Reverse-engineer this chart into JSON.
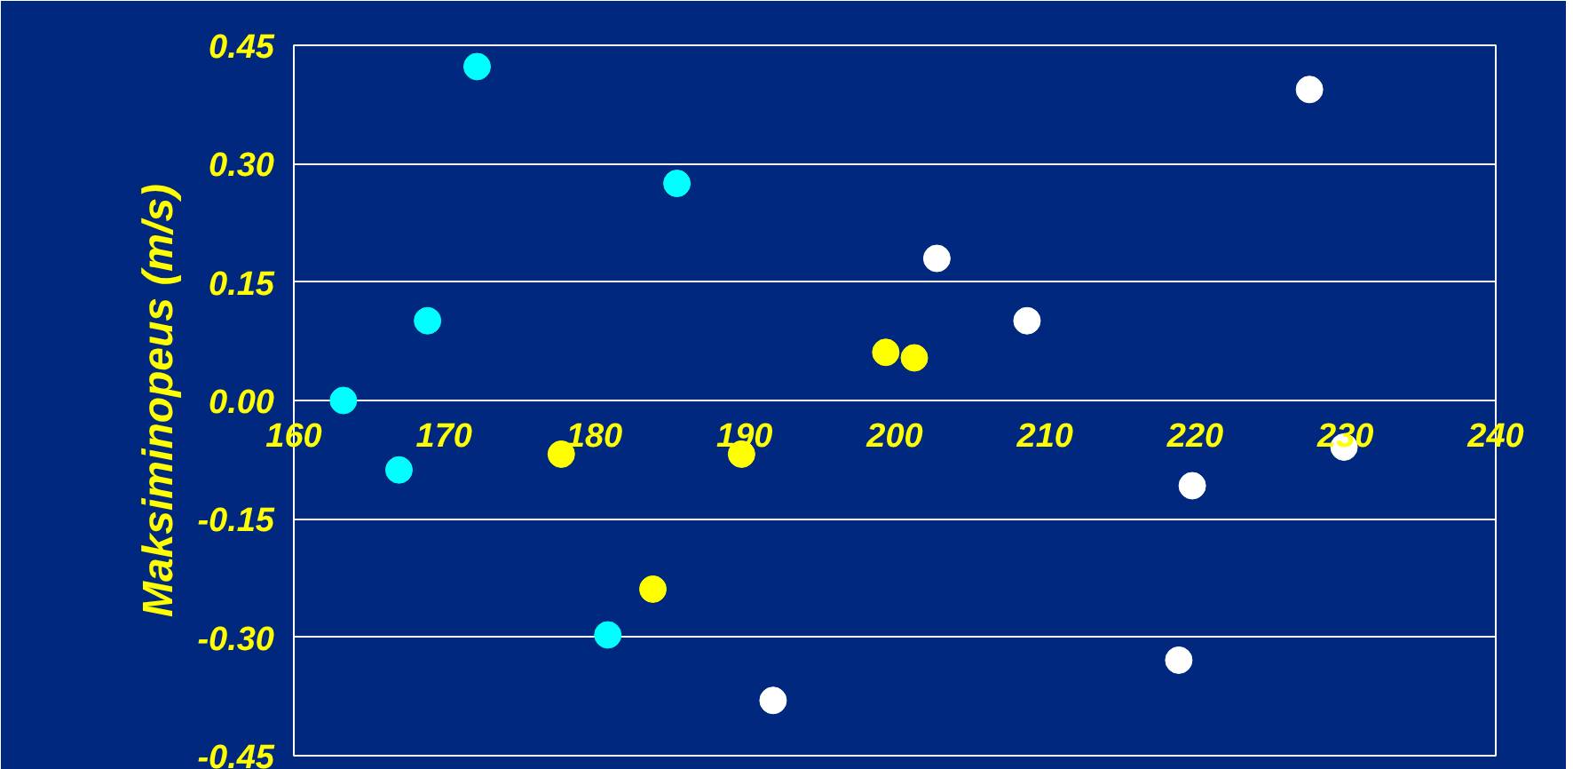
{
  "chart_data": {
    "type": "scatter",
    "ylabel": "Maksiminopeus (m/s)",
    "xlim": [
      160,
      240
    ],
    "xticks": [
      160,
      170,
      180,
      190,
      200,
      210,
      220,
      230,
      240
    ],
    "ylim": [
      -0.45,
      0.45
    ],
    "yticks": [
      {
        "value": -0.45,
        "label": "-0.45"
      },
      {
        "value": -0.3,
        "label": "-0.30"
      },
      {
        "value": -0.15,
        "label": "-0.15"
      },
      {
        "value": 0,
        "label": "0.00"
      },
      {
        "value": 0.15,
        "label": "0.15"
      },
      {
        "value": 0.3,
        "label": "0.30"
      },
      {
        "value": 0.45,
        "label": "0.45"
      }
    ],
    "grid": "y",
    "marker": "circle",
    "series": [
      {
        "color": "#00ffff",
        "x": [
          163.3,
          167.0,
          168.9,
          172.2,
          185.5,
          180.9
        ],
        "values": [
          0.0,
          -0.088,
          0.101,
          0.423,
          0.275,
          -0.297
        ]
      },
      {
        "color": "#ffff00",
        "x": [
          177.8,
          183.9,
          189.8,
          199.4,
          201.3
        ],
        "values": [
          -0.068,
          -0.239,
          -0.068,
          0.061,
          0.054
        ]
      },
      {
        "color": "#ffffff",
        "x": [
          202.8,
          191.9,
          208.8,
          219.8,
          218.9,
          227.6,
          229.9
        ],
        "values": [
          0.18,
          -0.38,
          0.101,
          -0.108,
          -0.329,
          0.394,
          -0.059
        ]
      }
    ]
  }
}
